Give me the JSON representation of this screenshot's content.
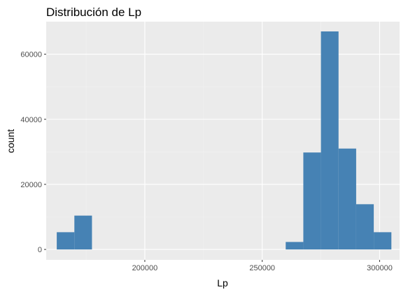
{
  "chart_data": {
    "type": "bar",
    "title": "Distribución de Lp",
    "xlabel": "Lp",
    "ylabel": "count",
    "bin_width": 7500,
    "bins": [
      {
        "x_start": 162500,
        "x_end": 170000,
        "count": 5300
      },
      {
        "x_start": 170000,
        "x_end": 177500,
        "count": 10400
      },
      {
        "x_start": 177500,
        "x_end": 185000,
        "count": 0
      },
      {
        "x_start": 185000,
        "x_end": 192500,
        "count": 0
      },
      {
        "x_start": 192500,
        "x_end": 200000,
        "count": 0
      },
      {
        "x_start": 200000,
        "x_end": 207500,
        "count": 0
      },
      {
        "x_start": 207500,
        "x_end": 215000,
        "count": 0
      },
      {
        "x_start": 215000,
        "x_end": 222500,
        "count": 0
      },
      {
        "x_start": 222500,
        "x_end": 230000,
        "count": 0
      },
      {
        "x_start": 230000,
        "x_end": 237500,
        "count": 0
      },
      {
        "x_start": 237500,
        "x_end": 245000,
        "count": 0
      },
      {
        "x_start": 245000,
        "x_end": 252500,
        "count": 0
      },
      {
        "x_start": 252500,
        "x_end": 260000,
        "count": 0
      },
      {
        "x_start": 260000,
        "x_end": 267500,
        "count": 2300
      },
      {
        "x_start": 267500,
        "x_end": 275000,
        "count": 29800
      },
      {
        "x_start": 275000,
        "x_end": 282500,
        "count": 67000
      },
      {
        "x_start": 282500,
        "x_end": 290000,
        "count": 31000
      },
      {
        "x_start": 290000,
        "x_end": 297500,
        "count": 13900
      },
      {
        "x_start": 297500,
        "x_end": 305000,
        "count": 5300
      }
    ],
    "xlim": [
      158000,
      308500
    ],
    "ylim": [
      -3200,
      70000
    ],
    "x_ticks": [
      200000,
      250000,
      300000
    ],
    "x_tick_labels": [
      "200000",
      "250000",
      "300000"
    ],
    "y_ticks": [
      0,
      20000,
      40000,
      60000
    ],
    "y_tick_labels": [
      "0",
      "20000",
      "40000",
      "60000"
    ],
    "grid": true,
    "colors": {
      "bar_fill": "#4682b4",
      "panel_background": "#ebebeb",
      "grid_major": "#ffffff",
      "grid_minor": "#f2f2f2"
    }
  }
}
